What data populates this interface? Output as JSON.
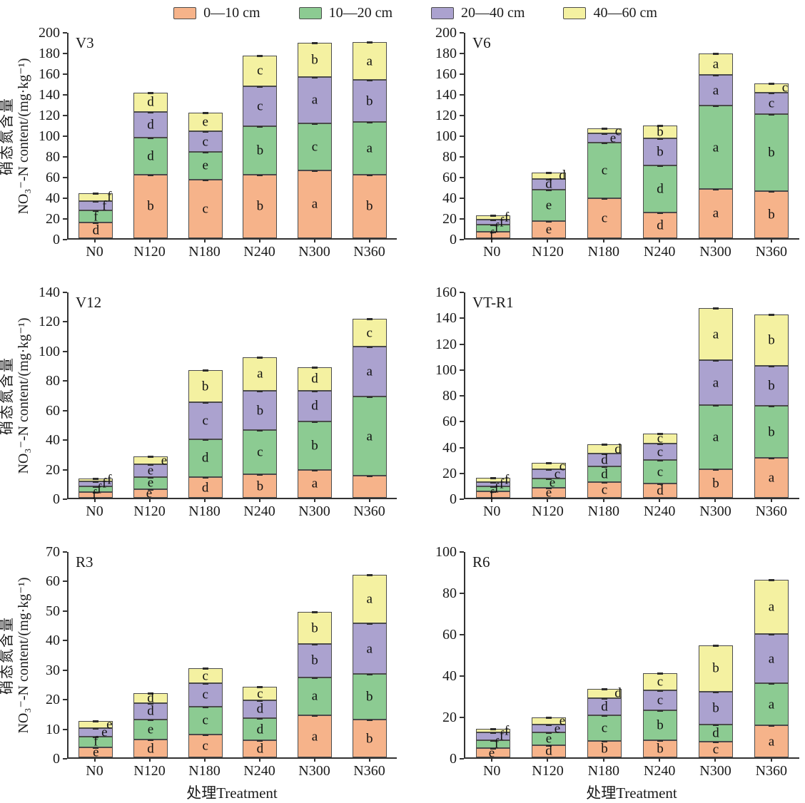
{
  "legend": {
    "items": [
      {
        "label": "0—10 cm",
        "color": "#F6B38A"
      },
      {
        "label": "10—20 cm",
        "color": "#8CCB92"
      },
      {
        "label": "20—40 cm",
        "color": "#ABA2CF"
      },
      {
        "label": "40—60 cm",
        "color": "#F4F1A1"
      }
    ]
  },
  "axis": {
    "ylabel_cn": "硝态氮含量",
    "ylabel_en": "NO₃⁻-N content/(mg·kg⁻¹)",
    "xlabel": "处理Treatment"
  },
  "chart_data": [
    {
      "id": "V3",
      "type": "bar",
      "stacked": true,
      "title": "V3",
      "ylim": [
        0,
        200
      ],
      "ystep": 20,
      "categories": [
        "N0",
        "N120",
        "N180",
        "N240",
        "N300",
        "N360"
      ],
      "series": [
        {
          "name": "0—10 cm",
          "values": [
            15,
            62,
            57,
            62,
            66,
            62
          ],
          "letters": [
            "d",
            "b",
            "c",
            "b",
            "a",
            "b"
          ]
        },
        {
          "name": "10—20 cm",
          "values": [
            12,
            36,
            27,
            47,
            46,
            51
          ],
          "letters": [
            "f",
            "d",
            "e",
            "b",
            "c",
            "a"
          ]
        },
        {
          "name": "20—40 cm",
          "values": [
            9,
            25,
            20,
            39,
            45,
            41
          ],
          "letters": [
            "f",
            "d",
            "c",
            "c",
            "a",
            "b"
          ]
        },
        {
          "name": "40—60 cm",
          "values": [
            8,
            19,
            18,
            30,
            33,
            37
          ],
          "letters": [
            "f",
            "d",
            "e",
            "c",
            "b",
            "a"
          ]
        }
      ]
    },
    {
      "id": "V6",
      "type": "bar",
      "stacked": true,
      "title": "V6",
      "ylim": [
        0,
        200
      ],
      "ystep": 20,
      "categories": [
        "N0",
        "N120",
        "N180",
        "N240",
        "N300",
        "N360"
      ],
      "series": [
        {
          "name": "0—10 cm",
          "values": [
            6,
            17,
            39,
            25,
            48,
            46
          ],
          "letters": [
            "f",
            "e",
            "c",
            "d",
            "a",
            "b"
          ]
        },
        {
          "name": "10—20 cm",
          "values": [
            7,
            30,
            54,
            46,
            81,
            75
          ],
          "letters": [
            "f",
            "e",
            "c",
            "d",
            "a",
            "b"
          ]
        },
        {
          "name": "20—40 cm",
          "values": [
            5,
            11,
            9,
            26,
            30,
            21
          ],
          "letters": [
            "f",
            "d",
            "e",
            "b",
            "a",
            "c"
          ]
        },
        {
          "name": "40—60 cm",
          "values": [
            4,
            6,
            5,
            13,
            21,
            9
          ],
          "letters": [
            "f",
            "d",
            "c",
            "b",
            "a",
            "c"
          ]
        }
      ]
    },
    {
      "id": "V12",
      "type": "bar",
      "stacked": true,
      "title": "V12",
      "ylim": [
        0,
        140
      ],
      "ystep": 20,
      "categories": [
        "N0",
        "N120",
        "N180",
        "N240",
        "N300",
        "N360"
      ],
      "series": [
        {
          "name": "0—10 cm",
          "values": [
            4,
            6,
            14,
            16,
            19,
            15
          ],
          "letters": [
            "f",
            "e",
            "d",
            "b",
            "a",
            ""
          ]
        },
        {
          "name": "10—20 cm",
          "values": [
            4,
            8,
            26,
            30,
            33,
            54
          ],
          "letters": [
            "f",
            "e",
            "d",
            "c",
            "b",
            "a"
          ]
        },
        {
          "name": "20—40 cm",
          "values": [
            3,
            9,
            25,
            27,
            21,
            34
          ],
          "letters": [
            "f",
            "e",
            "c",
            "b",
            "d",
            "a"
          ]
        },
        {
          "name": "40—60 cm",
          "values": [
            2,
            5,
            22,
            23,
            16,
            19
          ],
          "letters": [
            "f",
            "e",
            "b",
            "a",
            "d",
            "c"
          ]
        }
      ]
    },
    {
      "id": "VT-R1",
      "type": "bar",
      "stacked": true,
      "title": "VT-R1",
      "ylim": [
        0,
        160
      ],
      "ystep": 20,
      "categories": [
        "N0",
        "N120",
        "N180",
        "N240",
        "N300",
        "N360"
      ],
      "series": [
        {
          "name": "0—10 cm",
          "values": [
            5,
            8,
            12.5,
            11,
            22,
            31
          ],
          "letters": [
            "f",
            "e",
            "c",
            "d",
            "b",
            "a"
          ]
        },
        {
          "name": "10—20 cm",
          "values": [
            4,
            7,
            12,
            18.5,
            50,
            40.5
          ],
          "letters": [
            "f",
            "e",
            "d",
            "c",
            "a",
            "b"
          ]
        },
        {
          "name": "20—40 cm",
          "values": [
            3,
            7,
            10,
            12.5,
            35,
            31.5
          ],
          "letters": [
            "f",
            "c",
            "d",
            "c",
            "a",
            "b"
          ]
        },
        {
          "name": "40—60 cm",
          "values": [
            3.5,
            5,
            7,
            8,
            41,
            40
          ],
          "letters": [
            "f",
            "c",
            "d",
            "c",
            "a",
            "b"
          ]
        }
      ]
    },
    {
      "id": "R3",
      "type": "bar",
      "stacked": true,
      "title": "R3",
      "ylim": [
        0,
        70
      ],
      "ystep": 10,
      "categories": [
        "N0",
        "N120",
        "N180",
        "N240",
        "N300",
        "N360"
      ],
      "series": [
        {
          "name": "0—10 cm",
          "values": [
            3.5,
            6,
            7.8,
            5.8,
            14.3,
            12.8
          ],
          "letters": [
            "e",
            "d",
            "c",
            "d",
            "a",
            "b"
          ]
        },
        {
          "name": "10—20 cm",
          "values": [
            3.5,
            7,
            9.5,
            7.6,
            13,
            15.6
          ],
          "letters": [
            "f",
            "e",
            "c",
            "d",
            "a",
            "b"
          ]
        },
        {
          "name": "20—40 cm",
          "values": [
            3,
            5.5,
            8,
            6.1,
            11.3,
            17.2
          ],
          "letters": [
            "e",
            "d",
            "c",
            "d",
            "b",
            "a"
          ]
        },
        {
          "name": "40—60 cm",
          "values": [
            2.5,
            3.5,
            5,
            4.5,
            10.9,
            16.7
          ],
          "letters": [
            "e",
            "d",
            "c",
            "c",
            "b",
            "a"
          ]
        }
      ]
    },
    {
      "id": "R6",
      "type": "bar",
      "stacked": true,
      "title": "R6",
      "ylim": [
        0,
        100
      ],
      "ystep": 20,
      "categories": [
        "N0",
        "N120",
        "N180",
        "N240",
        "N300",
        "N360"
      ],
      "series": [
        {
          "name": "0—10 cm",
          "values": [
            4.5,
            6,
            8,
            8.5,
            7.5,
            15.5
          ],
          "letters": [
            "e",
            "d",
            "b",
            "b",
            "c",
            "a"
          ]
        },
        {
          "name": "10—20 cm",
          "values": [
            4,
            6,
            12.5,
            14.5,
            8.5,
            20.5
          ],
          "letters": [
            "f",
            "e",
            "c",
            "b",
            "d",
            "a"
          ]
        },
        {
          "name": "20—40 cm",
          "values": [
            3.5,
            4,
            8.5,
            9.5,
            16,
            24
          ],
          "letters": [
            "f",
            "e",
            "d",
            "c",
            "b",
            "a"
          ]
        },
        {
          "name": "40—60 cm",
          "values": [
            2,
            3.5,
            4.5,
            8.5,
            22.5,
            26.5
          ],
          "letters": [
            "f",
            "e",
            "d",
            "c",
            "b",
            "a"
          ]
        }
      ]
    }
  ]
}
